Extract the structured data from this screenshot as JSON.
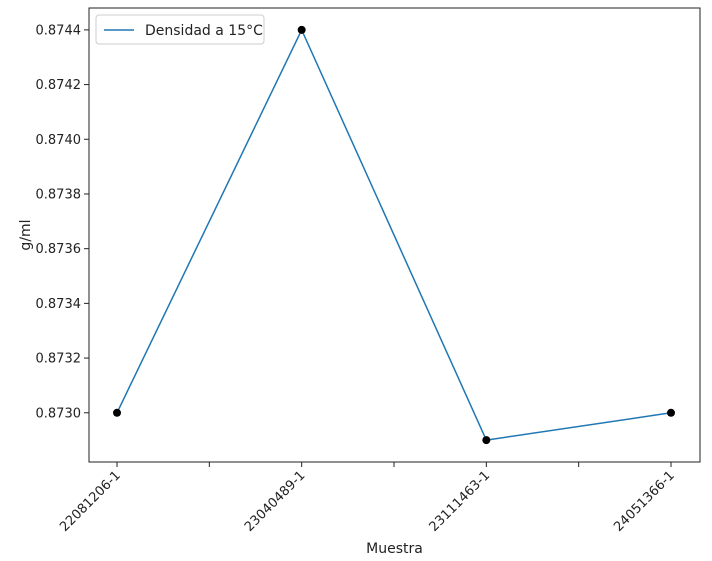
{
  "chart_data": {
    "type": "line",
    "categories": [
      "22081206-1",
      "23040489-1",
      "23111463-1",
      "24051366-1"
    ],
    "series": [
      {
        "name": "Densidad a 15°C",
        "values": [
          0.873,
          0.8744,
          0.8729,
          0.873
        ]
      }
    ],
    "xlabel": "Muestra",
    "ylabel": "g/ml",
    "ylim": [
      0.87282,
      0.87448
    ],
    "yticks": [
      0.873,
      0.8732,
      0.8734,
      0.8736,
      0.8738,
      0.874,
      0.8742,
      0.8744
    ],
    "ytick_labels": [
      "0.8730",
      "0.8732",
      "0.8734",
      "0.8736",
      "0.8738",
      "0.8740",
      "0.8742",
      "0.8744"
    ],
    "grid": false,
    "legend_position": "top-left",
    "colors": {
      "line": "#1f77b4",
      "marker": "#000000",
      "axis": "#222222"
    }
  }
}
